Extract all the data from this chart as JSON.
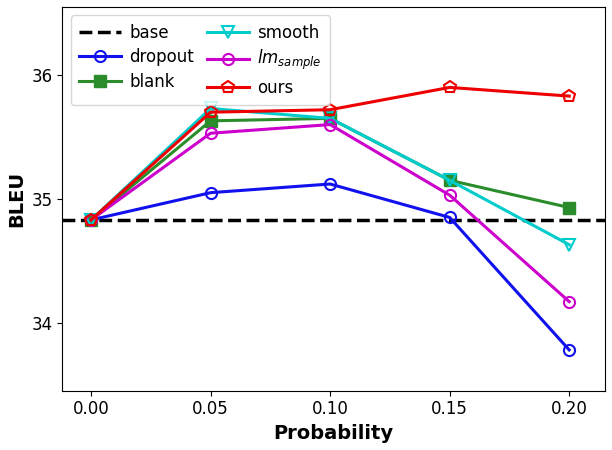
{
  "x": [
    0.0,
    0.05,
    0.1,
    0.15,
    0.2
  ],
  "base": 34.83,
  "dropout": [
    34.83,
    35.05,
    35.12,
    34.85,
    33.78
  ],
  "blank": [
    34.83,
    35.63,
    35.65,
    35.15,
    34.93
  ],
  "smooth": [
    34.83,
    35.73,
    35.65,
    35.15,
    34.63
  ],
  "lm_sample": [
    34.83,
    35.53,
    35.6,
    35.03,
    34.17
  ],
  "ours": [
    34.83,
    35.7,
    35.72,
    35.9,
    35.83
  ],
  "colors": {
    "base": "#000000",
    "dropout": "#1111ee",
    "blank": "#2a8c2a",
    "smooth": "#00cccc",
    "lm_sample": "#cc00cc",
    "ours": "#ee0000"
  },
  "xlabel": "Probability",
  "ylabel": "BLEU",
  "ylim": [
    33.45,
    36.55
  ],
  "yticks": [
    34,
    35,
    36
  ]
}
